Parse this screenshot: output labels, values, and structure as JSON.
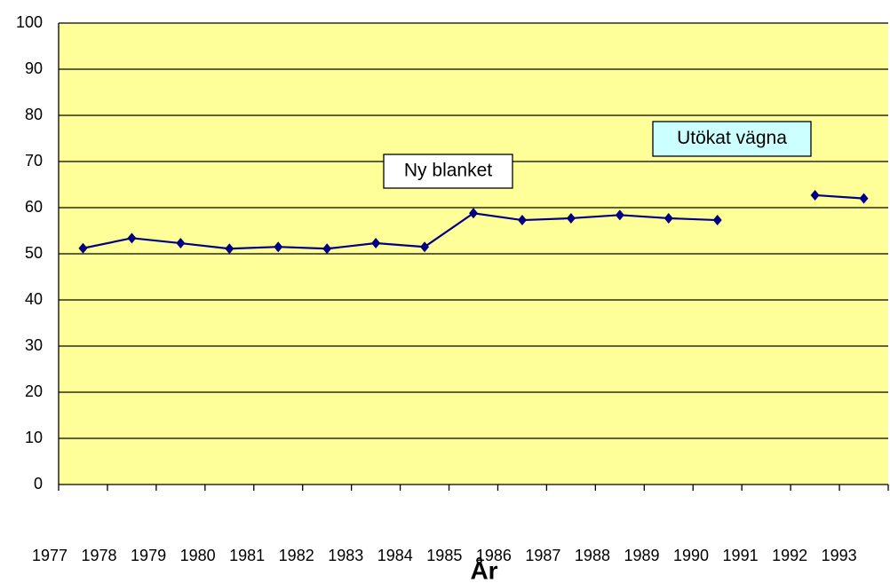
{
  "chart_data": {
    "type": "line",
    "x_label": "År",
    "categories": [
      "1977",
      "1978",
      "1979",
      "1980",
      "1981",
      "1982",
      "1983",
      "1984",
      "1985",
      "1986",
      "1987",
      "1988",
      "1989",
      "1990",
      "1991",
      "1992",
      "1993"
    ],
    "series": [
      {
        "color": "#000080",
        "values": [
          51.2,
          53.4,
          52.3,
          51.1,
          51.5,
          51.1,
          52.3,
          51.5,
          58.8,
          57.3,
          57.7,
          58.4,
          57.7,
          57.3,
          null,
          62.7,
          62.0
        ]
      }
    ],
    "ylim": [
      0,
      100
    ],
    "yticks": [
      0,
      10,
      20,
      30,
      40,
      50,
      60,
      70,
      80,
      90,
      100
    ],
    "grid": true,
    "plot_background": "#ffff99",
    "annotations": [
      {
        "text": "Ny blanket",
        "background": "#ffffff"
      },
      {
        "text": "Utökat vägna",
        "background": "#ccffff"
      }
    ]
  }
}
